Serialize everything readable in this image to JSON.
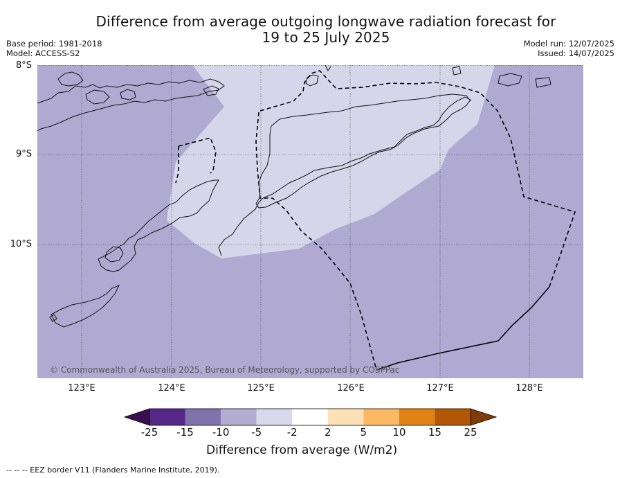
{
  "title_line1": "Difference from average outgoing longwave radiation forecast for",
  "title_line2": "19 to 25 July 2025",
  "meta_left": [
    "Base period: 1981-2018",
    "Model: ACCESS-S2"
  ],
  "meta_right": [
    "Model run: 12/07/2025",
    "Issued: 14/07/2025"
  ],
  "map": {
    "lat_labels": [
      "8°S",
      "9°S",
      "10°S"
    ],
    "lon_labels": [
      "123°E",
      "124°E",
      "125°E",
      "126°E",
      "127°E",
      "128°E"
    ],
    "copyright": "© Commonwealth of Australia 2025, Bureau of Meteorology, supported by COSPPac",
    "colors": {
      "minus10_to_minus5": "#b0aad2",
      "minus5_to_minus2": "#d6d6ea",
      "coast": "#111111"
    }
  },
  "colorbar": {
    "ticks": [
      "-25",
      "-15",
      "-10",
      "-5",
      "-2",
      "2",
      "5",
      "10",
      "15",
      "25"
    ],
    "colors": [
      "#3b0f4f",
      "#542788",
      "#8073ac",
      "#b2abd2",
      "#d8daeb",
      "#ffffff",
      "#fee0b6",
      "#fdb863",
      "#e08214",
      "#b35806",
      "#7f3b08"
    ],
    "label": "Difference from average (W/m2)"
  },
  "footnote": "--  --  -- EEZ border V11 (Flanders Marine Institute, 2019)."
}
